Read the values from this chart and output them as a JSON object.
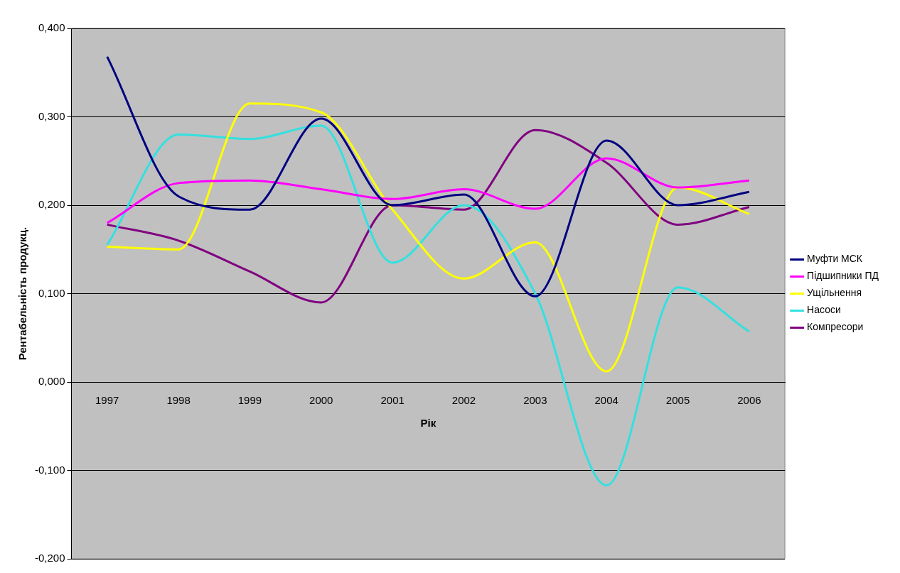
{
  "chart_data": {
    "type": "line",
    "xlabel": "Рік",
    "ylabel": "Рентабельність продукц.",
    "categories": [
      "1997",
      "1998",
      "1999",
      "2000",
      "2001",
      "2002",
      "2003",
      "2004",
      "2005",
      "2006"
    ],
    "series": [
      {
        "name": "Муфти МСК",
        "color": "#000080",
        "values": [
          0.368,
          0.21,
          0.195,
          0.298,
          0.2,
          0.212,
          0.097,
          0.273,
          0.2,
          0.215
        ]
      },
      {
        "name": "Підшипники ПД",
        "color": "#ff00ff",
        "values": [
          0.18,
          0.225,
          0.228,
          0.218,
          0.207,
          0.218,
          0.196,
          0.253,
          0.22,
          0.228
        ]
      },
      {
        "name": "Ущільнення",
        "color": "#ffff00",
        "values": [
          0.153,
          0.15,
          0.315,
          0.305,
          0.195,
          0.117,
          0.158,
          0.012,
          0.22,
          0.19
        ]
      },
      {
        "name": "Насоси",
        "color": "#33e0e0",
        "values": [
          0.155,
          0.28,
          0.275,
          0.29,
          0.135,
          0.2,
          0.1,
          -0.117,
          0.107,
          0.057
        ]
      },
      {
        "name": "Компресори",
        "color": "#800080",
        "values": [
          0.178,
          0.16,
          0.125,
          0.09,
          0.2,
          0.195,
          0.285,
          0.248,
          0.178,
          0.198
        ]
      }
    ],
    "ylim": [
      -0.2,
      0.4
    ],
    "yticks": [
      {
        "value": -0.2,
        "label": "-0,200"
      },
      {
        "value": -0.1,
        "label": "-0,100"
      },
      {
        "value": 0,
        "label": "0,000"
      },
      {
        "value": 0.1,
        "label": "0,100"
      },
      {
        "value": 0.2,
        "label": "0,200"
      },
      {
        "value": 0.3,
        "label": "0,300"
      },
      {
        "value": 0.4,
        "label": "0,400"
      }
    ],
    "grid": "y",
    "legend": "right",
    "marker": "none",
    "line_style": "solid"
  }
}
